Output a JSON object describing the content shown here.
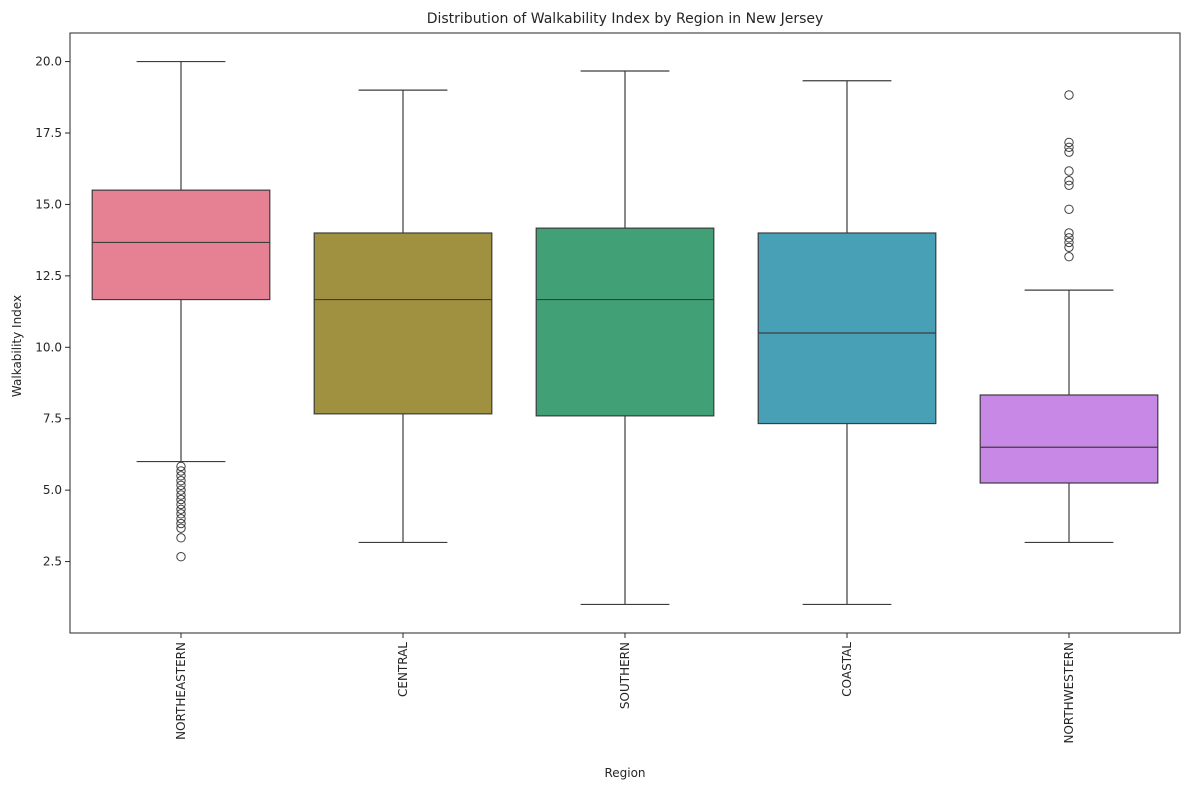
{
  "chart_data": {
    "type": "box",
    "title": "Distribution of Walkability Index by Region in New Jersey",
    "xlabel": "Region",
    "ylabel": "Walkability Index",
    "ylim": [
      0.0,
      21.0
    ],
    "yticks": [
      "2.5",
      "5.0",
      "7.5",
      "10.0",
      "12.5",
      "15.0",
      "17.5",
      "20.0"
    ],
    "grid": false,
    "categories": [
      "NORTHEASTERN",
      "CENTRAL",
      "SOUTHERN",
      "COASTAL",
      "NORTHWESTERN"
    ],
    "series": [
      {
        "category": "NORTHEASTERN",
        "whisker_low": 6.0,
        "q1": 11.67,
        "median": 13.67,
        "q3": 15.5,
        "whisker_high": 20.0,
        "outliers": [
          5.83,
          5.67,
          5.5,
          5.33,
          5.17,
          5.0,
          4.83,
          4.67,
          4.5,
          4.33,
          4.17,
          4.0,
          3.83,
          3.67,
          3.33,
          2.67
        ],
        "color": "#E68193"
      },
      {
        "category": "CENTRAL",
        "whisker_low": 3.17,
        "q1": 7.67,
        "median": 11.67,
        "q3": 14.0,
        "whisker_high": 19.0,
        "outliers": [],
        "color": "#A09140"
      },
      {
        "category": "SOUTHERN",
        "whisker_low": 1.0,
        "q1": 7.6,
        "median": 11.67,
        "q3": 14.17,
        "whisker_high": 19.67,
        "outliers": [],
        "color": "#42A077"
      },
      {
        "category": "COASTAL",
        "whisker_low": 1.0,
        "q1": 7.33,
        "median": 10.5,
        "q3": 14.0,
        "whisker_high": 19.33,
        "outliers": [],
        "color": "#48A0B6"
      },
      {
        "category": "NORTHWESTERN",
        "whisker_low": 3.17,
        "q1": 5.25,
        "median": 6.5,
        "q3": 8.33,
        "whisker_high": 12.0,
        "outliers": [
          18.83,
          17.17,
          17.0,
          16.83,
          16.17,
          15.83,
          15.67,
          14.83,
          14.0,
          13.83,
          13.67,
          13.5,
          13.17
        ],
        "color": "#C788E6"
      }
    ]
  }
}
